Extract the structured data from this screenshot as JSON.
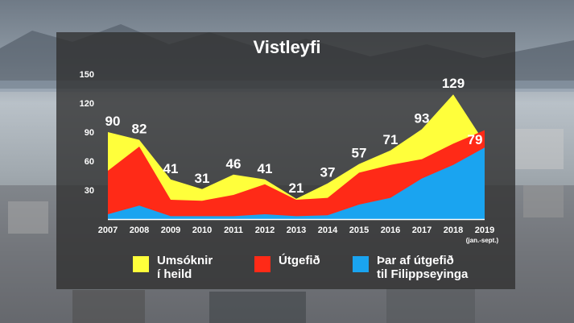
{
  "colors": {
    "umsoknir": "#ffff3b",
    "utgefid": "#ff2a17",
    "filippseyinga": "#1aa4f0"
  },
  "chart_data": {
    "type": "area",
    "title": "Vistleyfi",
    "categories": [
      "2007",
      "2008",
      "2009",
      "2010",
      "2011",
      "2012",
      "2013",
      "2014",
      "2015",
      "2016",
      "2017",
      "2018",
      "2019"
    ],
    "x_note": "(jan.-sept.)",
    "y_ticks": [
      "150",
      "120",
      "90",
      "60",
      "30"
    ],
    "ylim": [
      0,
      150
    ],
    "series": [
      {
        "name": "Umsóknir\ní heild",
        "values": [
          90,
          82,
          41,
          31,
          46,
          41,
          21,
          37,
          57,
          71,
          93,
          129,
          79
        ]
      },
      {
        "name": "Útgefið",
        "values": [
          50,
          75,
          20,
          19,
          25,
          36,
          20,
          22,
          48,
          56,
          62,
          78,
          92
        ]
      },
      {
        "name": "Þar af útgefið\ntil Filippseyinga",
        "values": [
          5,
          14,
          3,
          3,
          3,
          5,
          3,
          4,
          15,
          22,
          42,
          56,
          74
        ]
      }
    ],
    "data_labels": [
      "90",
      "82",
      "41",
      "31",
      "46",
      "41",
      "21",
      "37",
      "57",
      "71",
      "93",
      "129",
      "79"
    ],
    "legend": "bottom"
  }
}
